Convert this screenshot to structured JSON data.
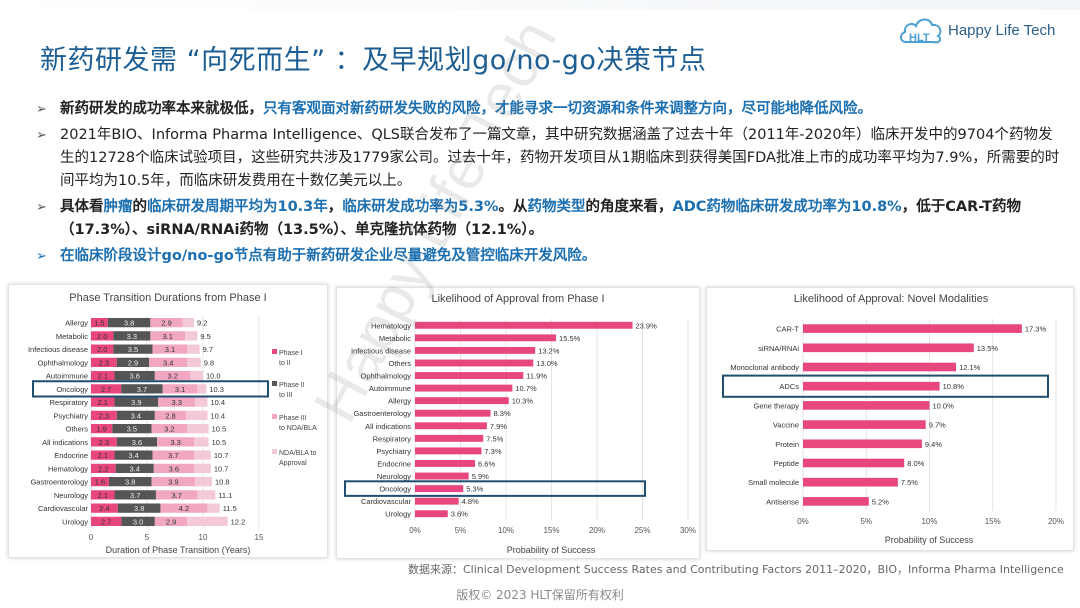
{
  "header": {
    "title": "新药研发需 “向死而生” ：及早规划go/no-go决策节点",
    "logo_text": "Happy Life Tech",
    "logo_mark": "HLT"
  },
  "bullets": [
    {
      "plain1": "新药研发的成功率本来就极低，",
      "hl1": "只有客观面对新药研发失败的风险，才能寻求一切资源和条件来调整方向，尽可能地降低风险。"
    },
    {
      "text": "2021年BIO、Informa Pharma Intelligence、QLS联合发布了一篇文章，其中研究数据涵盖了过去十年（2011年-2020年）临床开发中的9704个药物发生的12728个临床试验项目，这些研究共涉及1779家公司。过去十年，药物开发项目从1期临床到获得美国FDA批准上市的成功率平均为7.9%，所需要的时间平均为10.5年，而临床研发费用在十数亿美元以上。"
    },
    {
      "p1": "具体看",
      "h1": "肿瘤",
      "p2": "的",
      "h2": "临床研发周期平均为10.3年",
      "p3": "，",
      "h3": "临床研发成功率为5.3%",
      "p4": "。从",
      "h4": "药物类型",
      "p5": "的角度来看，",
      "h5": "ADC药物临床研发成功率为10.8%",
      "p6": "，低于CAR-T药物（17.3%）、siRNA/RNAi药物（13.5%）、单克隆抗体药物（12.1%）。"
    },
    {
      "text": "在临床阶段设计go/no-go节点有助于新药研发企业尽量避免及管控临床开发风险。"
    }
  ],
  "source": "数据来源：Clinical Development Success Rates and Contributing Factors 2011–2020，BIO，Informa Pharma Intelligence",
  "copyright": "版权© 2023 HLT保留所有权利",
  "watermark": "Happy Life Tech",
  "colors": {
    "pink": "#e8477e",
    "light_pink": "#f1a7c2",
    "grey": "#9a9a9a",
    "dark": "#555555",
    "highlight_box": "#1f4e6e",
    "title": "#1c5e93"
  },
  "chart_data": [
    {
      "type": "bar",
      "stacked": true,
      "orientation": "horizontal",
      "title": "Phase Transition Durations from Phase I",
      "xlabel": "Duration of Phase Transition (Years)",
      "xlim": [
        0,
        15
      ],
      "xticks": [
        0,
        5,
        10,
        15
      ],
      "categories": [
        "Allergy",
        "Metabolic",
        "Infectious disease",
        "Ophthalmology",
        "Autoimmune",
        "Oncology",
        "Respiratory",
        "Psychiatry",
        "Others",
        "All indications",
        "Endocrine",
        "Hematology",
        "Gastroenterology",
        "Neurology",
        "Cardiovascular",
        "Urology"
      ],
      "series": [
        {
          "name": "Phase I to II",
          "values": [
            1.5,
            2.0,
            2.0,
            2.3,
            2.1,
            2.7,
            2.1,
            2.3,
            1.9,
            2.3,
            2.1,
            2.2,
            1.6,
            2.1,
            2.4,
            2.7
          ]
        },
        {
          "name": "Phase II to III",
          "values": [
            3.8,
            3.3,
            3.5,
            2.9,
            3.6,
            3.7,
            3.9,
            3.4,
            3.5,
            3.6,
            3.4,
            3.4,
            3.8,
            3.7,
            3.8,
            3.0
          ]
        },
        {
          "name": "Phase III to NDA/BLA",
          "values": [
            2.9,
            3.1,
            3.1,
            3.4,
            3.2,
            3.1,
            3.3,
            2.8,
            3.2,
            3.3,
            3.7,
            3.6,
            3.9,
            3.7,
            4.2,
            2.9
          ]
        },
        {
          "name": "NDA/BLA to Approval",
          "values": [
            1.0,
            1.1,
            1.1,
            1.2,
            1.1,
            0.8,
            1.1,
            1.9,
            1.9,
            1.3,
            1.5,
            1.5,
            1.5,
            1.6,
            1.1,
            3.6
          ]
        }
      ],
      "totals": [
        "9.2",
        "9.5",
        "9.7",
        "9.8",
        "10.0",
        "10.3",
        "10.4",
        "10.4",
        "10.5",
        "10.5",
        "10.7",
        "10.7",
        "10.8",
        "11.1",
        "11.5",
        "12.2"
      ],
      "highlight": "Oncology",
      "legend_position": "right"
    },
    {
      "type": "bar",
      "orientation": "horizontal",
      "title": "Likelihood of Approval from Phase I",
      "xlabel": "Probability of Success",
      "xlim": [
        0,
        30
      ],
      "xticks": [
        "0%",
        "5%",
        "10%",
        "15%",
        "20%",
        "25%",
        "30%"
      ],
      "categories": [
        "Hematology",
        "Metabolic",
        "Infectious disease",
        "Others",
        "Ophthalmology",
        "Autoimmune",
        "Allergy",
        "Gastroenterology",
        "All indications",
        "Respiratory",
        "Psychiatry",
        "Endocrine",
        "Neurology",
        "Oncology",
        "Cardiovascular",
        "Urology"
      ],
      "values": [
        23.9,
        15.5,
        13.2,
        13.0,
        11.9,
        10.7,
        10.3,
        8.3,
        7.9,
        7.5,
        7.3,
        6.6,
        5.9,
        5.3,
        4.8,
        3.6
      ],
      "labels": [
        "23.9%",
        "15.5%",
        "13.2%",
        "13.0%",
        "11.9%",
        "10.7%",
        "10.3%",
        "8.3%",
        "7.9%",
        "7.5%",
        "7.3%",
        "6.6%",
        "5.9%",
        "5.3%",
        "4.8%",
        "3.6%"
      ],
      "highlight": "Oncology"
    },
    {
      "type": "bar",
      "orientation": "horizontal",
      "title": "Likelihood of Approval: Novel Modalities",
      "xlabel": "Probability of Success",
      "xlim": [
        0,
        20
      ],
      "xticks": [
        "0%",
        "5%",
        "10%",
        "15%",
        "20%"
      ],
      "categories": [
        "CAR-T",
        "siRNA/RNAi",
        "Monoclonal antibody",
        "ADCs",
        "Gene therapy",
        "Vaccine",
        "Protein",
        "Peptide",
        "Small molecule",
        "Antisense"
      ],
      "values": [
        17.3,
        13.5,
        12.1,
        10.8,
        10.0,
        9.7,
        9.4,
        8.0,
        7.5,
        5.2
      ],
      "labels": [
        "17.3%",
        "13.5%",
        "12.1%",
        "10.8%",
        "10.0%",
        "9.7%",
        "9.4%",
        "8.0%",
        "7.5%",
        "5.2%"
      ],
      "highlight": "ADCs"
    }
  ]
}
